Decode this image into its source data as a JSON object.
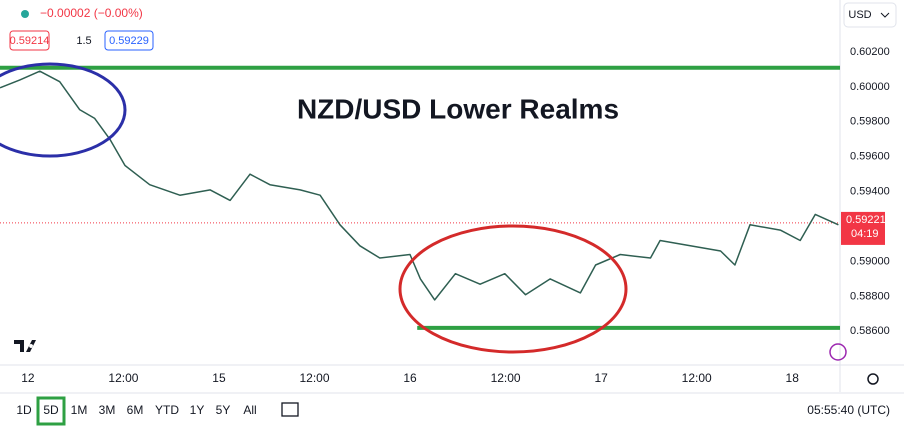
{
  "chart_data": {
    "type": "line",
    "title": "NZD/USD Lower Realms",
    "currency": "USD",
    "change": "−0.00002 (−0.00%)",
    "bid": 0.59214,
    "spread": 1.5,
    "ask": 0.59229,
    "last_price": 0.59221,
    "countdown": "04:19",
    "ranges": [
      "1D",
      "5D",
      "1M",
      "3M",
      "6M",
      "YTD",
      "1Y",
      "5Y",
      "All"
    ],
    "selected_range": "5D",
    "clock": "05:55:40 (UTC)",
    "xlim": [
      -3.5,
      102
    ],
    "xticks": [
      {
        "value": 0,
        "label": "12"
      },
      {
        "value": 12,
        "label": "12:00"
      },
      {
        "value": 24,
        "label": "15"
      },
      {
        "value": 36,
        "label": "12:00"
      },
      {
        "value": 48,
        "label": "16"
      },
      {
        "value": 60,
        "label": "12:00"
      },
      {
        "value": 72,
        "label": "17"
      },
      {
        "value": 84,
        "label": "12:00"
      },
      {
        "value": 96,
        "label": "18"
      }
    ],
    "ylim": [
      0.58407,
      0.60498
    ],
    "yticks": [
      {
        "value": 0.602,
        "label": "0.60200"
      },
      {
        "value": 0.6,
        "label": "0.60000"
      },
      {
        "value": 0.598,
        "label": "0.59800"
      },
      {
        "value": 0.596,
        "label": "0.59600"
      },
      {
        "value": 0.594,
        "label": "0.59400"
      },
      {
        "value": 0.59,
        "label": "0.59000"
      },
      {
        "value": 0.588,
        "label": "0.58800"
      },
      {
        "value": 0.586,
        "label": "0.58600"
      }
    ],
    "grid": false,
    "series": [
      {
        "name": "NZD/USD",
        "color": "#2f5f52",
        "x": [
          -3.5,
          -1.0,
          1.5,
          4.0,
          6.5,
          8.4,
          10.3,
          12.2,
          15.3,
          19.1,
          22.9,
          25.4,
          27.9,
          30.4,
          34.2,
          36.7,
          39.2,
          41.7,
          44.2,
          48.0,
          49.3,
          51.1,
          53.7,
          56.8,
          59.9,
          62.5,
          65.6,
          69.4,
          71.3,
          74.4,
          78.2,
          79.4,
          83.2,
          87.0,
          88.8,
          90.7,
          94.5,
          97.0,
          98.9,
          101.8
        ],
        "values": [
          0.59995,
          0.6004,
          0.6009,
          0.6003,
          0.5987,
          0.5982,
          0.597,
          0.5955,
          0.5944,
          0.5938,
          0.5941,
          0.5935,
          0.595,
          0.5944,
          0.5941,
          0.5938,
          0.5921,
          0.5909,
          0.5902,
          0.5904,
          0.589,
          0.5878,
          0.5893,
          0.5887,
          0.5893,
          0.5881,
          0.589,
          0.5882,
          0.5898,
          0.5904,
          0.5902,
          0.5912,
          0.5909,
          0.5906,
          0.5898,
          0.5921,
          0.5918,
          0.5912,
          0.5927,
          0.5921
        ]
      }
    ],
    "levels": [
      {
        "value": 0.6011,
        "color": "#2ea043",
        "from": -3.5
      },
      {
        "value": 0.5862,
        "color": "#2ea043",
        "from": 48.9
      }
    ]
  }
}
